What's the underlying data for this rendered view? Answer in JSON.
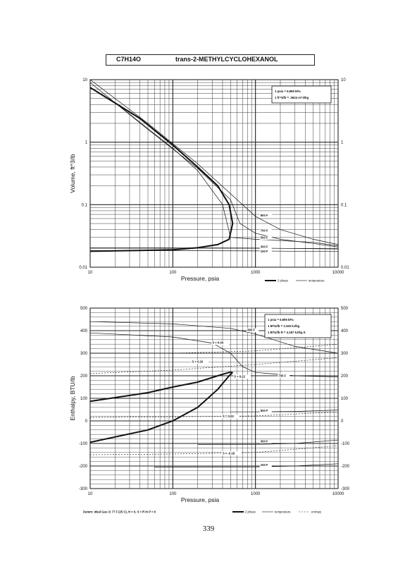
{
  "header": {
    "formula": "C7H14O",
    "compound_name": "trans-2-METHYLCYCLOHEXANOL"
  },
  "page_number": "339",
  "chart_data": [
    {
      "type": "line",
      "xscale": "log",
      "yscale": "log",
      "xlim": [
        10,
        10000
      ],
      "ylim": [
        0.01,
        10
      ],
      "xlabel": "Pressure,  psia",
      "ylabel": "Volume,  ft^3/lb",
      "x_ticks": [
        "10",
        "100",
        "1000",
        "10000"
      ],
      "y_ticks": [
        "10",
        "1",
        "0.1",
        "0.01"
      ],
      "y_ticks_right": [
        "10",
        "1",
        "0.1",
        "0.01"
      ],
      "conversions": [
        "1 psia  =  6.895 kPa",
        "1 ft^3/lb  =  .0624 m^3/kg"
      ],
      "legend": [
        "2 phase",
        "temperature"
      ],
      "series": [
        {
          "type": "2 phase",
          "x": [
            10,
            40,
            100,
            200,
            350,
            480,
            530,
            480,
            350,
            200,
            100,
            40,
            10
          ],
          "y": [
            0.018,
            0.0185,
            0.019,
            0.0205,
            0.023,
            0.028,
            0.05,
            0.1,
            0.2,
            0.4,
            0.9,
            2.4,
            7.5
          ]
        },
        {
          "type": "temperature",
          "label": "800 F",
          "x": [
            10,
            50,
            200,
            600,
            1000,
            2000,
            5000,
            10000
          ],
          "y": [
            10.0,
            2.0,
            0.45,
            0.12,
            0.065,
            0.04,
            0.028,
            0.023
          ]
        },
        {
          "type": "temperature",
          "label": "700 F",
          "x": [
            10,
            50,
            200,
            500,
            650,
            1000,
            2000,
            5000,
            10000
          ],
          "y": [
            9.0,
            1.6,
            0.38,
            0.12,
            0.05,
            0.035,
            0.028,
            0.024,
            0.021
          ]
        },
        {
          "type": "temperature",
          "label": "500 F",
          "x": [
            20,
            100,
            200,
            400,
            500,
            1000,
            5000,
            10000
          ],
          "y": [
            4.3,
            0.8,
            0.35,
            0.1,
            0.03,
            0.028,
            0.025,
            0.022
          ]
        },
        {
          "type": "temperature",
          "label": "300 F",
          "x": [
            10,
            100,
            1000,
            10000
          ],
          "y": [
            0.0205,
            0.0205,
            0.0202,
            0.0196
          ]
        },
        {
          "type": "temperature",
          "label": "100 F",
          "x": [
            10,
            100,
            1000,
            10000
          ],
          "y": [
            0.0184,
            0.0184,
            0.0182,
            0.0178
          ]
        }
      ],
      "series_labels": [
        {
          "text": "800 F",
          "x": 1150,
          "y": 0.065
        },
        {
          "text": "700 F",
          "x": 1150,
          "y": 0.037
        },
        {
          "text": "500 F",
          "x": 1150,
          "y": 0.0285
        },
        {
          "text": "300 F",
          "x": 1150,
          "y": 0.0205
        },
        {
          "text": "100 F",
          "x": 1150,
          "y": 0.0173
        }
      ]
    },
    {
      "type": "line",
      "xscale": "log",
      "yscale": "linear",
      "xlim": [
        10,
        10000
      ],
      "ylim": [
        -300,
        500
      ],
      "xlabel": "Pressure,  psia",
      "ylabel": "Enthalpy,  BTU/lb",
      "x_ticks": [
        "10",
        "100",
        "1000",
        "10000"
      ],
      "y_ticks": [
        "500",
        "400",
        "300",
        "200",
        "100",
        "0",
        "-100",
        "-200",
        "-300"
      ],
      "y_ticks_right": [
        "500",
        "400",
        "300",
        "200",
        "100",
        "0",
        "-100",
        "-200",
        "-300"
      ],
      "conversions": [
        "1 psia  =  6.895 kPa",
        "1 BTU/lb  =  2.326 kJ/kg",
        "1 BTU/lb R  =  4.187 kJ/kg K"
      ],
      "legend": [
        "2 phase",
        "temperature",
        "entropy"
      ],
      "footnote": "Datum: Ideal Gas @ 77 F (25 C),  H = 0,  S = R ln P = 0",
      "series": [
        {
          "type": "2 phase",
          "x": [
            10,
            50,
            100,
            200,
            350,
            480,
            530
          ],
          "y": [
            87,
            125,
            150,
            172,
            200,
            215,
            215
          ]
        },
        {
          "type": "2 phase",
          "x": [
            10,
            50,
            100,
            200,
            350,
            480,
            530
          ],
          "y": [
            -95,
            -40,
            0,
            60,
            140,
            200,
            215
          ]
        },
        {
          "type": "temperature",
          "label": "800 F",
          "x": [
            10,
            100,
            500,
            1000,
            3000,
            10000
          ],
          "y": [
            440,
            430,
            410,
            385,
            330,
            300
          ]
        },
        {
          "type": "temperature",
          "label": "700 F",
          "x": [
            10,
            100,
            300,
            500,
            700,
            1000,
            3000,
            10000
          ],
          "y": [
            390,
            372,
            345,
            300,
            240,
            215,
            200,
            195
          ]
        },
        {
          "type": "temperature",
          "label": "500 F",
          "x": [
            500,
            1000,
            3000,
            10000
          ],
          "y": [
            40,
            40,
            42,
            48
          ]
        },
        {
          "type": "temperature",
          "label": "300 F",
          "x": [
            200,
            1000,
            3000,
            10000
          ],
          "y": [
            -105,
            -104,
            -100,
            -85
          ]
        },
        {
          "type": "temperature",
          "label": "100 F",
          "x": [
            60,
            1000,
            3000,
            10000
          ],
          "y": [
            -205,
            -204,
            -200,
            -190
          ]
        },
        {
          "type": "entropy",
          "label": "S = 0.34",
          "x": [
            10,
            100,
            1000,
            10000
          ],
          "y": [
            300,
            300,
            310,
            340
          ]
        },
        {
          "type": "entropy",
          "label": "S = 0.26",
          "x": [
            10,
            100,
            1000,
            10000
          ],
          "y": [
            210,
            225,
            250,
            280
          ]
        },
        {
          "type": "entropy",
          "label": "S = 0.03",
          "x": [
            10,
            100,
            1000,
            10000
          ],
          "y": [
            15,
            18,
            22,
            40
          ]
        },
        {
          "type": "entropy",
          "label": "S = -0.18",
          "x": [
            10,
            100,
            1000,
            10000
          ],
          "y": [
            -150,
            -147,
            -140,
            -110
          ]
        }
      ],
      "series_labels": [
        {
          "text": "800 F",
          "x": 800,
          "y": 398
        },
        {
          "text": "700 F",
          "x": 1900,
          "y": 195
        },
        {
          "text": "500 F",
          "x": 1150,
          "y": 40
        },
        {
          "text": "300 F",
          "x": 1150,
          "y": -95
        },
        {
          "text": "100 F",
          "x": 1150,
          "y": -200
        },
        {
          "text": "S = 0.34",
          "x": 300,
          "y": 342
        },
        {
          "text": "S = 0.26",
          "x": 170,
          "y": 258
        },
        {
          "text": "S = 0.22",
          "x": 550,
          "y": 192
        },
        {
          "text": "S = 0.03",
          "x": 400,
          "y": 15
        },
        {
          "text": "S = -0.18",
          "x": 400,
          "y": -148
        }
      ]
    }
  ]
}
